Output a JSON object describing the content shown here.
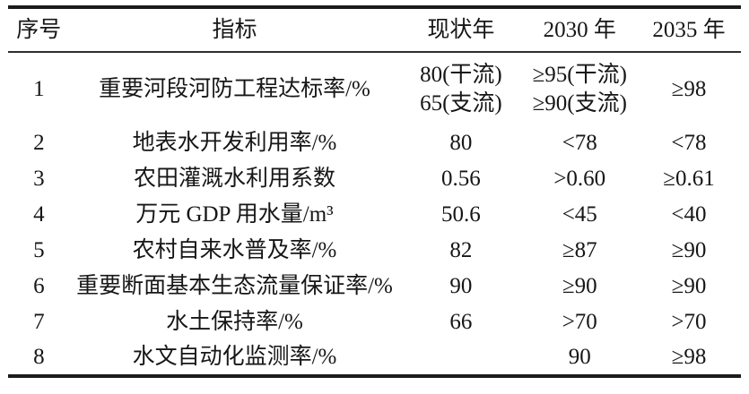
{
  "table": {
    "headers": {
      "no": "序号",
      "indicator": "指标",
      "current_year": "现状年",
      "y2030": "2030 年",
      "y2035": "2035 年"
    },
    "rows": [
      {
        "no": "1",
        "indicator": "重要河段河防工程达标率/%",
        "current": "80(干流)\n65(支流)",
        "y2030": "≥95(干流)\n≥90(支流)",
        "y2035": "≥98"
      },
      {
        "no": "2",
        "indicator": "地表水开发利用率/%",
        "current": "80",
        "y2030": "<78",
        "y2035": "<78"
      },
      {
        "no": "3",
        "indicator": "农田灌溉水利用系数",
        "current": "0.56",
        "y2030": ">0.60",
        "y2035": "≥0.61"
      },
      {
        "no": "4",
        "indicator": "万元 GDP 用水量/m³",
        "current": "50.6",
        "y2030": "<45",
        "y2035": "<40"
      },
      {
        "no": "5",
        "indicator": "农村自来水普及率/%",
        "current": "82",
        "y2030": "≥87",
        "y2035": "≥90"
      },
      {
        "no": "6",
        "indicator": "重要断面基本生态流量保证率/%",
        "current": "90",
        "y2030": "≥90",
        "y2035": "≥90"
      },
      {
        "no": "7",
        "indicator": "水土保持率/%",
        "current": "66",
        "y2030": ">70",
        "y2035": ">70"
      },
      {
        "no": "8",
        "indicator": "水文自动化监测率/%",
        "current": "",
        "y2030": "90",
        "y2035": "≥98"
      }
    ]
  }
}
